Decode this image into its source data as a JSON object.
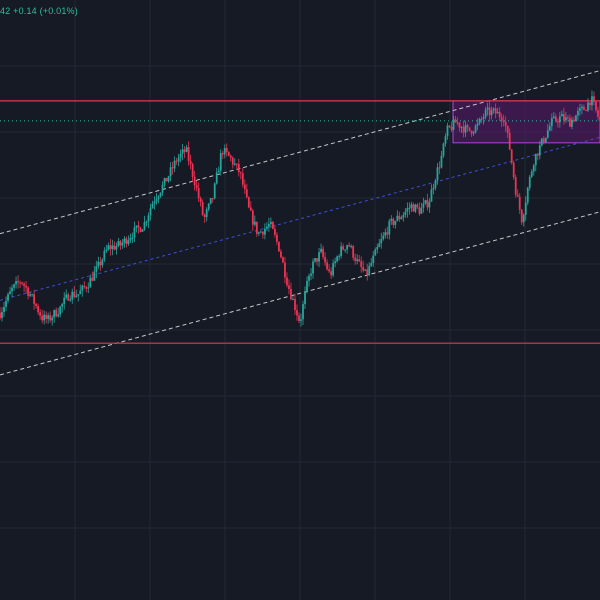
{
  "header": {
    "price_change": "42 +0.14 (+0.01%)"
  },
  "colors": {
    "background": "#161a25",
    "grid": "#232838",
    "bullish": "#26a69a",
    "bearish": "#ef3354",
    "support_resistance_line": "#e8344e",
    "channel_line": "#c8c8c8",
    "channel_midline": "#3f4ed8",
    "range_box_fill": "#5b1a6e",
    "range_box_border": "#b044d8",
    "price_dotted_line": "#2fbf9b"
  },
  "drawings": {
    "horizontal_levels": 2,
    "parallel_channel": true,
    "range_box": true
  },
  "chart_data": {
    "type": "candlestick",
    "title": "",
    "xlabel": "",
    "ylabel": "",
    "grid": true,
    "ylim": [
      0,
      100
    ],
    "horizontal_levels": [
      83.5,
      31.5
    ],
    "channel": {
      "upper": {
        "start": [
          0,
          55
        ],
        "end": [
          100,
          90
        ]
      },
      "middle": {
        "start": [
          0,
          40.7
        ],
        "end": [
          100,
          75.7
        ]
      },
      "lower": {
        "start": [
          0,
          24.7
        ],
        "end": [
          100,
          59.7
        ]
      }
    },
    "range_box": {
      "x": [
        75.5,
        100
      ],
      "y": [
        74.5,
        83.5
      ]
    },
    "trend_path": [
      [
        0,
        38
      ],
      [
        2,
        43
      ],
      [
        3.5,
        45
      ],
      [
        5,
        42
      ],
      [
        7,
        37
      ],
      [
        8,
        36.5
      ],
      [
        10,
        39
      ],
      [
        11.5,
        42
      ],
      [
        13,
        42
      ],
      [
        14.5,
        44
      ],
      [
        16,
        47
      ],
      [
        18,
        52
      ],
      [
        20,
        52.5
      ],
      [
        22,
        55
      ],
      [
        24,
        57
      ],
      [
        25.5,
        62
      ],
      [
        27.5,
        66
      ],
      [
        29.5,
        71
      ],
      [
        31,
        73
      ],
      [
        32.5,
        66
      ],
      [
        34,
        58
      ],
      [
        35.5,
        63
      ],
      [
        37,
        73
      ],
      [
        38.5,
        71
      ],
      [
        40,
        68
      ],
      [
        41.5,
        60
      ],
      [
        43,
        55
      ],
      [
        45,
        57
      ],
      [
        46.5,
        52
      ],
      [
        48,
        44
      ],
      [
        49,
        40
      ],
      [
        50,
        36
      ],
      [
        51,
        43
      ],
      [
        52,
        48
      ],
      [
        53.5,
        51
      ],
      [
        55,
        46
      ],
      [
        56.5,
        51
      ],
      [
        58,
        53
      ],
      [
        59.5,
        49
      ],
      [
        61,
        46
      ],
      [
        63,
        52
      ],
      [
        65,
        57
      ],
      [
        67,
        59
      ],
      [
        68.5,
        61
      ],
      [
        70,
        60
      ],
      [
        71.5,
        62
      ],
      [
        72.5,
        67
      ],
      [
        73.5,
        71
      ],
      [
        74.5,
        77
      ],
      [
        76,
        79
      ],
      [
        78,
        77
      ],
      [
        79.5,
        78
      ],
      [
        81,
        81
      ],
      [
        82.5,
        81
      ],
      [
        84,
        80
      ],
      [
        85,
        73
      ],
      [
        86,
        64
      ],
      [
        87,
        58
      ],
      [
        88,
        65
      ],
      [
        89,
        71
      ],
      [
        90.5,
        75
      ],
      [
        92,
        79
      ],
      [
        93.5,
        80
      ],
      [
        95,
        79
      ],
      [
        96.5,
        81
      ],
      [
        97.5,
        82
      ],
      [
        98.5,
        84
      ],
      [
        100,
        79
      ]
    ],
    "candle_count": 300
  }
}
